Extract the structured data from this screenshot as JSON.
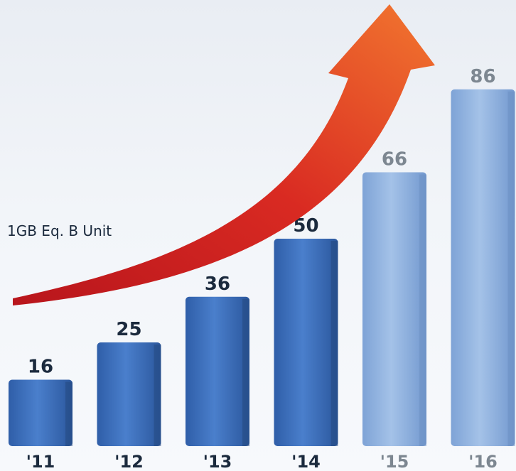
{
  "chart_data": {
    "type": "bar",
    "title": "",
    "xlabel": "",
    "ylabel": "",
    "unit_label": "1GB Eq. B Unit",
    "categories": [
      "'11",
      "'12",
      "'13",
      "'14",
      "'15",
      "'16"
    ],
    "values": [
      16,
      25,
      36,
      50,
      66,
      86
    ],
    "projected": [
      false,
      false,
      false,
      false,
      true,
      true
    ],
    "ylim": [
      0,
      100
    ],
    "grid": false,
    "legend": "none",
    "colors": {
      "actual_bar": "#3d6fbe",
      "projected_bar": "#8fb1de",
      "actual_label": "#1b2a3d",
      "projected_label": "#7d8791",
      "trend_arrow": "#e8442a"
    }
  }
}
